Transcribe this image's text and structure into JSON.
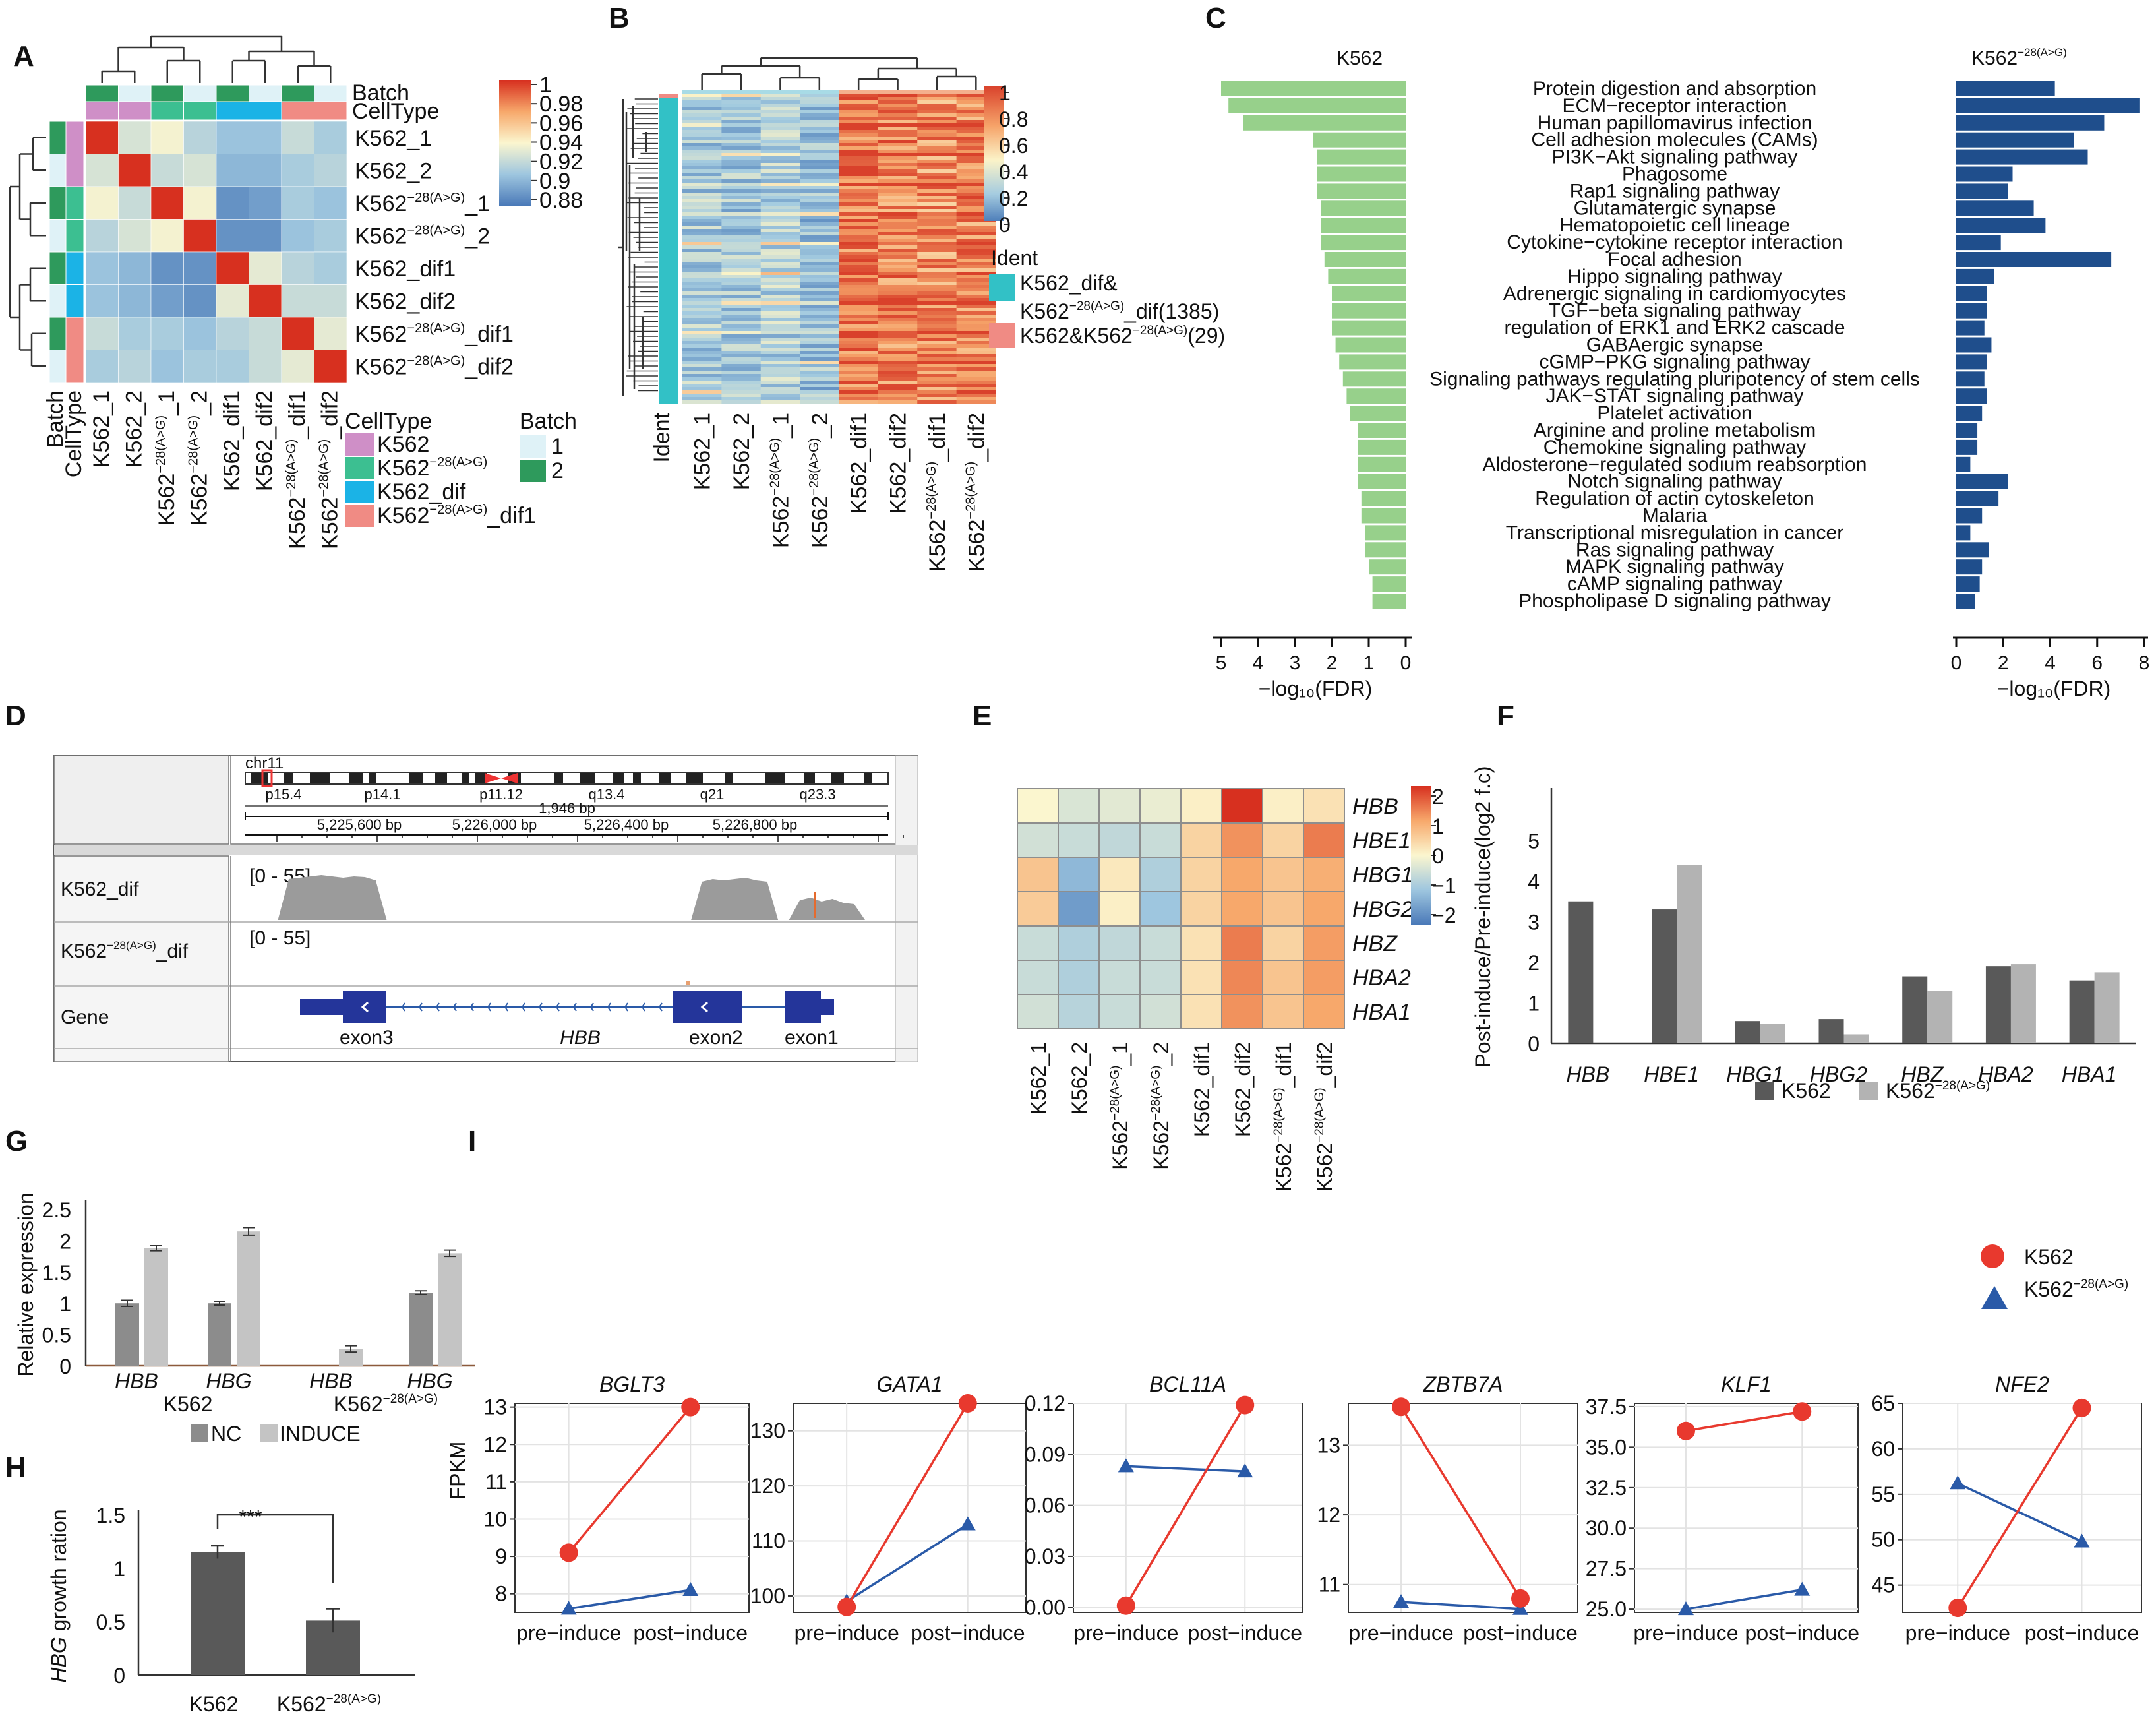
{
  "colors": {
    "red": "#e8392e",
    "blue": "#2a5aa8",
    "green_bar": "#97d08b",
    "navy_bar": "#1f4e8c",
    "dark_bar": "#595959",
    "light_bar": "#b3b3b3",
    "pink": "#cf8fc7",
    "teal": "#3cbf91",
    "cyan": "#1bb3e6",
    "salmon": "#f08b84",
    "batch1": "#dff2f7",
    "batch2": "#2e9a5c"
  },
  "panels": {
    "A": {
      "label": "A",
      "samples": [
        "K562_1",
        "K562_2",
        "K562⁻²⁸⁽ᴬ⁾ᴳ⁾_1",
        "K562⁻²⁸⁽ᴬ⁾ᴳ⁾_2",
        "K562_dif1",
        "K562_dif2",
        "K562⁻²⁸⁽ᴬ⁾ᴳ⁾_dif1",
        "K562⁻²⁸⁽ᴬ⁾ᴳ⁾_dif2"
      ],
      "sample_labels": [
        {
          "base": "K562_1",
          "sup": "",
          "tail": ""
        },
        {
          "base": "K562_2",
          "sup": "",
          "tail": ""
        },
        {
          "base": "K562",
          "sup": "−28(A>G)",
          "tail": "_1"
        },
        {
          "base": "K562",
          "sup": "−28(A>G)",
          "tail": "_2"
        },
        {
          "base": "K562_dif1",
          "sup": "",
          "tail": ""
        },
        {
          "base": "K562_dif2",
          "sup": "",
          "tail": ""
        },
        {
          "base": "K562",
          "sup": "−28(A>G)",
          "tail": "_dif1"
        },
        {
          "base": "K562",
          "sup": "−28(A>G)",
          "tail": "_dif2"
        }
      ],
      "annot_labels": [
        "Batch",
        "CellType"
      ],
      "colorbar_ticks": [
        "1",
        "0.98",
        "0.96",
        "0.94",
        "0.92",
        "0.9",
        "0.88"
      ],
      "legend_celltype_title": "CellType",
      "legend_celltype": [
        {
          "base": "K562",
          "sup": "",
          "tail": ""
        },
        {
          "base": "K562",
          "sup": "−28(A>G)",
          "tail": ""
        },
        {
          "base": "K562_dif",
          "sup": "",
          "tail": ""
        },
        {
          "base": "K562",
          "sup": "−28(A>G)",
          "tail": "_dif1"
        }
      ],
      "legend_batch_title": "Batch",
      "legend_batch": [
        "1",
        "2"
      ],
      "matrix": [
        [
          1,
          0.925,
          0.935,
          0.915,
          0.905,
          0.905,
          0.92,
          0.91
        ],
        [
          0.925,
          1,
          0.92,
          0.925,
          0.9,
          0.9,
          0.91,
          0.915
        ],
        [
          0.935,
          0.92,
          1,
          0.935,
          0.885,
          0.89,
          0.91,
          0.905
        ],
        [
          0.915,
          0.925,
          0.935,
          1,
          0.885,
          0.885,
          0.905,
          0.91
        ],
        [
          0.905,
          0.9,
          0.885,
          0.885,
          1,
          0.93,
          0.915,
          0.91
        ],
        [
          0.905,
          0.9,
          0.89,
          0.885,
          0.93,
          1,
          0.92,
          0.92
        ],
        [
          0.92,
          0.91,
          0.91,
          0.905,
          0.915,
          0.92,
          1,
          0.93
        ],
        [
          0.91,
          0.915,
          0.905,
          0.91,
          0.91,
          0.92,
          0.93,
          1
        ]
      ]
    },
    "B": {
      "label": "B",
      "colorbar_ticks": [
        "1",
        "0.8",
        "0.6",
        "0.4",
        "0.2",
        "0"
      ],
      "legend_title": "Ident",
      "legend": [
        "K562_dif&",
        "K562⁻²⁸⁽ᴬ⁾ᴳ⁾_dif(1385)",
        "K562&K562⁻²⁸⁽ᴬ⁾ᴳ⁾(29)"
      ],
      "legend_line1": "K562_dif&",
      "legend_line2": {
        "base": "K562",
        "sup": "−28(A>G)",
        "tail": "_dif(1385)"
      },
      "legend_line3": {
        "base": "K562&K562",
        "sup": "−28(A>G)",
        "tail": "(29)"
      },
      "ident_label": "Ident",
      "column_means": [
        0.3,
        0.28,
        0.33,
        0.25,
        0.86,
        0.84,
        0.8,
        0.83
      ]
    }
  },
  "chart_data": [
    {
      "id": "C",
      "label": "C",
      "type": "bar",
      "orientation": "horizontal-diverging",
      "left_title": "K562",
      "right_title": {
        "base": "K562",
        "sup": "−28(A>G)"
      },
      "xlabel": "−log₁₀(FDR)",
      "left_ticks": [
        "5",
        "4",
        "3",
        "2",
        "1",
        "0"
      ],
      "right_ticks": [
        "0",
        "2",
        "4",
        "6",
        "8"
      ],
      "left_xlim": [
        0,
        5.1
      ],
      "right_xlim": [
        0,
        8
      ],
      "categories": [
        "Protein digestion and absorption",
        "ECM−receptor interaction",
        "Human papillomavirus infection",
        "Cell adhesion molecules (CAMs)",
        "PI3K−Akt signaling pathway",
        "Phagosome",
        "Rap1 signaling pathway",
        "Glutamatergic synapse",
        "Hematopoietic cell lineage",
        "Cytokine−cytokine receptor interaction",
        "Focal adhesion",
        "Hippo signaling pathway",
        "Adrenergic signaling in cardiomyocytes",
        "TGF−beta signaling pathway",
        "regulation of ERK1 and ERK2 cascade",
        "GABAergic synapse",
        "cGMP−PKG signaling pathway",
        "Signaling pathways regulating pluripotency of stem cells",
        "JAK−STAT signaling pathway",
        "Platelet activation",
        "Arginine and proline metabolism",
        "Chemokine signaling pathway",
        "Aldosterone−regulated sodium reabsorption",
        "Notch signaling pathway",
        "Regulation of actin cytoskeleton",
        "Malaria",
        "Transcriptional misregulation in cancer",
        "Ras signaling pathway",
        "MAPK signaling pathway",
        "cAMP signaling pathway",
        "Phospholipase D signaling pathway"
      ],
      "series": [
        {
          "name": "K562",
          "values": [
            5.0,
            4.8,
            4.4,
            2.5,
            2.4,
            2.4,
            2.4,
            2.3,
            2.3,
            2.3,
            2.2,
            2.1,
            2.0,
            2.0,
            2.0,
            1.9,
            1.8,
            1.7,
            1.6,
            1.5,
            1.3,
            1.3,
            1.3,
            1.3,
            1.2,
            1.2,
            1.1,
            1.1,
            1.0,
            0.9,
            0.9
          ]
        },
        {
          "name": "K562−28(A>G)",
          "values": [
            4.2,
            7.8,
            6.3,
            5.0,
            5.6,
            2.4,
            2.2,
            3.3,
            3.8,
            1.9,
            6.6,
            1.6,
            1.3,
            1.3,
            1.2,
            1.5,
            1.3,
            1.2,
            1.3,
            1.1,
            0.9,
            0.9,
            0.6,
            2.2,
            1.8,
            1.1,
            0.6,
            1.4,
            1.1,
            1.0,
            0.8
          ]
        }
      ]
    },
    {
      "id": "D",
      "label": "D",
      "type": "other",
      "chrom": "chr11",
      "bands": [
        "p15.4",
        "p14.1",
        "p11.12",
        "q13.4",
        "q21",
        "q23.3"
      ],
      "span": "1,946 bp",
      "positions": [
        "5,225,600 bp",
        "5,226,000 bp",
        "5,226,400 bp",
        "5,226,800 bp"
      ],
      "tracks": [
        {
          "name": "K562_dif",
          "range": "[0 - 55]"
        },
        {
          "name": {
            "base": "K562",
            "sup": "−28(A>G)",
            "tail": "_dif"
          },
          "range": "[0 - 55]"
        }
      ],
      "gene_track": "Gene",
      "gene_name": "HBB",
      "exons": [
        "exon3",
        "exon2",
        "exon1"
      ],
      "coverage_profile": [
        0,
        0,
        0,
        0,
        0.62,
        0.64,
        0.66,
        0.68,
        0.66,
        0.64,
        0.66,
        0.65,
        0.6,
        0,
        0,
        0,
        0,
        0,
        0,
        0,
        0,
        0,
        0,
        0,
        0,
        0,
        0,
        0,
        0,
        0,
        0,
        0,
        0,
        0,
        0,
        0,
        0,
        0,
        0,
        0,
        0,
        0,
        0.58,
        0.62,
        0.6,
        0.62,
        0.64,
        0.6,
        0.58,
        0,
        0,
        0.3,
        0.34,
        0.28,
        0.32,
        0.26,
        0.24,
        0,
        0,
        0
      ]
    },
    {
      "id": "E",
      "label": "E",
      "type": "heatmap",
      "rows": [
        "HBB",
        "HBE1",
        "HBG1",
        "HBG2",
        "HBZ",
        "HBA2",
        "HBA1"
      ],
      "columns": [
        "K562_1",
        "K562_2",
        "K562⁻²⁸⁽ᴬ⁾ᴳ⁾_1",
        "K562⁻²⁸⁽ᴬ⁾ᴳ⁾_2",
        "K562_dif1",
        "K562_dif2",
        "K562⁻²⁸⁽ᴬ⁾ᴳ⁾_dif1",
        "K562⁻²⁸⁽ᴬ⁾ᴳ⁾_dif2"
      ],
      "column_labels": [
        {
          "base": "K562_1",
          "sup": "",
          "tail": ""
        },
        {
          "base": "K562_2",
          "sup": "",
          "tail": ""
        },
        {
          "base": "K562",
          "sup": "−28(A>G)",
          "tail": "_1"
        },
        {
          "base": "K562",
          "sup": "−28(A>G)",
          "tail": "_2"
        },
        {
          "base": "K562_dif1",
          "sup": "",
          "tail": ""
        },
        {
          "base": "K562_dif2",
          "sup": "",
          "tail": ""
        },
        {
          "base": "K562",
          "sup": "−28(A>G)",
          "tail": "_dif1"
        },
        {
          "base": "K562",
          "sup": "−28(A>G)",
          "tail": "_dif2"
        }
      ],
      "colorbar_ticks": [
        "2",
        "1",
        "0",
        "−1",
        "−2"
      ],
      "zlim": [
        -2.2,
        2.2
      ],
      "values": [
        [
          0.0,
          -0.4,
          -0.3,
          -0.2,
          0.1,
          2.6,
          0.1,
          0.3
        ],
        [
          -0.5,
          -0.6,
          -0.7,
          -0.6,
          0.5,
          1.3,
          0.5,
          1.5
        ],
        [
          0.7,
          -1.3,
          0.2,
          -0.9,
          0.5,
          1.1,
          0.7,
          1.0
        ],
        [
          0.6,
          -1.7,
          0.1,
          -1.1,
          0.5,
          1.1,
          0.7,
          1.1
        ],
        [
          -0.6,
          -0.9,
          -0.7,
          -0.6,
          0.3,
          1.5,
          0.5,
          1.2
        ],
        [
          -0.6,
          -0.9,
          -0.6,
          -0.6,
          0.3,
          1.4,
          0.7,
          1.2
        ],
        [
          -0.5,
          -0.8,
          -0.6,
          -0.5,
          0.3,
          1.3,
          0.7,
          1.1
        ]
      ]
    },
    {
      "id": "F",
      "label": "F",
      "type": "bar",
      "categories": [
        "HBB",
        "HBE1",
        "HBG1",
        "HBG2",
        "HBZ",
        "HBA2",
        "HBA1"
      ],
      "series": [
        {
          "name": "K562",
          "values": [
            3.5,
            3.3,
            0.55,
            0.6,
            1.65,
            1.9,
            1.55
          ]
        },
        {
          "name": "K562−28(A>G)",
          "values": [
            0,
            4.4,
            0.48,
            0.22,
            1.3,
            1.95,
            1.75
          ]
        }
      ],
      "legend": [
        {
          "base": "K562",
          "sup": ""
        },
        {
          "base": "K562",
          "sup": "−28(A>G)"
        }
      ],
      "ylabel": "Post-induce/Pre-induce(log2 f.c)",
      "yticks": [
        "0",
        "1",
        "2",
        "3",
        "4",
        "5"
      ],
      "ylim": [
        0,
        5.5
      ]
    },
    {
      "id": "G",
      "label": "G",
      "type": "bar",
      "categories": [
        "HBB",
        "HBG",
        "HBB",
        "HBG"
      ],
      "group_labels": [
        {
          "base": "K562",
          "sup": ""
        },
        {
          "base": "K562",
          "sup": "−28(A>G)"
        }
      ],
      "series": [
        {
          "name": "NC",
          "values": [
            1.0,
            1.0,
            0,
            1.17
          ],
          "errors": [
            0.05,
            0.03,
            0,
            0.03
          ]
        },
        {
          "name": "INDUCE",
          "values": [
            1.88,
            2.15,
            0.27,
            1.8
          ],
          "errors": [
            0.04,
            0.06,
            0.05,
            0.05
          ]
        }
      ],
      "ylabel": "Relative expression",
      "yticks": [
        "0",
        "0.5",
        "1",
        "1.5",
        "2",
        "2.5"
      ],
      "ylim": [
        0,
        2.5
      ]
    },
    {
      "id": "H",
      "label": "H",
      "type": "bar",
      "categories": [
        {
          "base": "K562",
          "sup": ""
        },
        {
          "base": "K562",
          "sup": "−28(A>G)"
        }
      ],
      "values": [
        1.15,
        0.51
      ],
      "errors": [
        0.06,
        0.11
      ],
      "ylabel_italic": "HBG",
      "ylabel_rest": " growth ration",
      "significance": "***",
      "yticks": [
        "0",
        "0.5",
        "1",
        "1.5"
      ],
      "ylim": [
        0,
        1.5
      ]
    },
    {
      "id": "I",
      "label": "I",
      "type": "line",
      "x": [
        "pre−induce",
        "post−induce"
      ],
      "ylabel": "FPKM",
      "legend": [
        {
          "base": "K562",
          "sup": ""
        },
        {
          "base": "K562",
          "sup": "−28(A>G)"
        }
      ],
      "subplots": [
        {
          "title": "BGLT3",
          "ylim": [
            7.5,
            13.1
          ],
          "yticks": [
            8,
            9,
            10,
            11,
            12,
            13
          ],
          "ytick_labels": [
            "8",
            "9",
            "10",
            "11",
            "12",
            "13"
          ],
          "series": [
            {
              "name": "K562",
              "values": [
                9.1,
                13.0
              ]
            },
            {
              "name": "K562−28(A>G)",
              "values": [
                7.6,
                8.1
              ]
            }
          ]
        },
        {
          "title": "GATA1",
          "ylim": [
            97,
            135
          ],
          "yticks": [
            100,
            110,
            120,
            130
          ],
          "ytick_labels": [
            "100",
            "110",
            "120",
            "130"
          ],
          "series": [
            {
              "name": "K562",
              "values": [
                98,
                135
              ]
            },
            {
              "name": "K562−28(A>G)",
              "values": [
                99,
                113
              ]
            }
          ]
        },
        {
          "title": "BCL11A",
          "ylim": [
            -0.003,
            0.12
          ],
          "yticks": [
            0,
            0.03,
            0.06,
            0.09,
            0.12
          ],
          "ytick_labels": [
            "0.00",
            "0.03",
            "0.06",
            "0.09",
            "0.12"
          ],
          "series": [
            {
              "name": "K562",
              "values": [
                0.001,
                0.119
              ]
            },
            {
              "name": "K562−28(A>G)",
              "values": [
                0.083,
                0.08
              ]
            }
          ]
        },
        {
          "title": "ZBTB7A",
          "ylim": [
            10.6,
            13.6
          ],
          "yticks": [
            11,
            12,
            13
          ],
          "ytick_labels": [
            "11",
            "12",
            "13"
          ],
          "series": [
            {
              "name": "K562",
              "values": [
                13.55,
                10.8
              ]
            },
            {
              "name": "K562−28(A>G)",
              "values": [
                10.75,
                10.65
              ]
            }
          ]
        },
        {
          "title": "KLF1",
          "ylim": [
            24.8,
            37.7
          ],
          "yticks": [
            25,
            27.5,
            30,
            32.5,
            35,
            37.5
          ],
          "ytick_labels": [
            "25.0",
            "27.5",
            "30.0",
            "32.5",
            "35.0",
            "37.5"
          ],
          "series": [
            {
              "name": "K562",
              "values": [
                36.0,
                37.2
              ]
            },
            {
              "name": "K562−28(A>G)",
              "values": [
                25.0,
                26.2
              ]
            }
          ]
        },
        {
          "title": "NFE2",
          "ylim": [
            42,
            65
          ],
          "yticks": [
            45,
            50,
            55,
            60,
            65
          ],
          "ytick_labels": [
            "45",
            "50",
            "55",
            "60",
            "65"
          ],
          "series": [
            {
              "name": "K562",
              "values": [
                42.5,
                64.5
              ]
            },
            {
              "name": "K562−28(A>G)",
              "values": [
                56.2,
                49.8
              ]
            }
          ]
        }
      ]
    }
  ]
}
